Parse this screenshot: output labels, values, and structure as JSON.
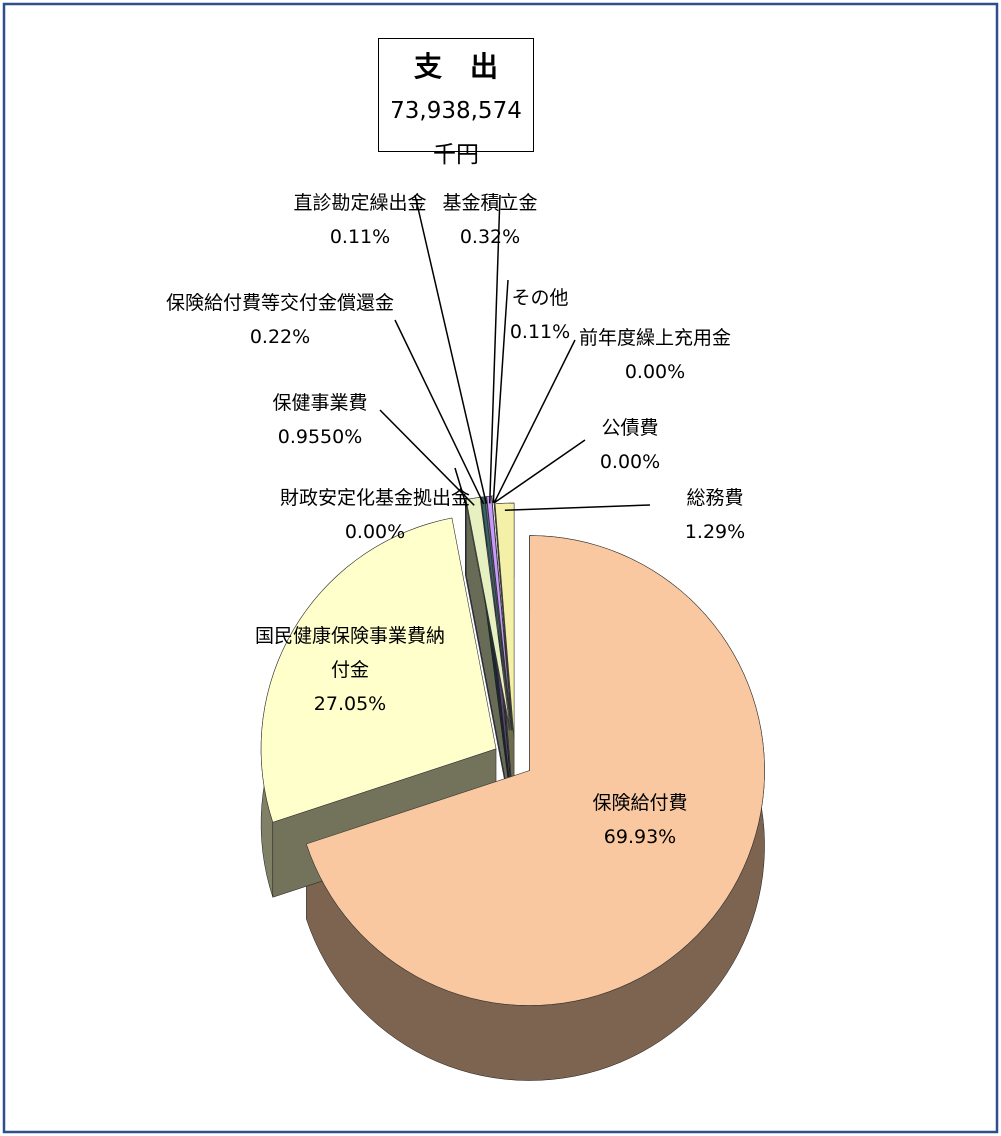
{
  "chart_data": {
    "type": "pie",
    "title": "支　出",
    "subtitle": "73,938,574千円",
    "categories": [
      "保険給付費",
      "国民健康保険事業費納付金",
      "財政安定化基金拠出金",
      "保健事業費",
      "保険給付費等交付金償還金",
      "直診勘定繰出金",
      "基金積立金",
      "その他",
      "前年度繰上充用金",
      "公債費",
      "総務費"
    ],
    "values": [
      69.93,
      27.05,
      0,
      0.955,
      0.22,
      0.11,
      0.32,
      0.11,
      0,
      0,
      1.29
    ],
    "value_labels": [
      "69.93%",
      "27.05%",
      "0.00%",
      "0.9550%",
      "0.22%",
      "0.11%",
      "0.32%",
      "0.11%",
      "0.00%",
      "0.00%",
      "1.29%"
    ],
    "colors": [
      "#fac8a0",
      "#ffffcc",
      "#9999ff",
      "#e6f0c0",
      "#336666",
      "#666699",
      "#cc99ff",
      "#ffffff",
      "#c0c0c0",
      "#99ccff",
      "#f5f0a8"
    ]
  }
}
